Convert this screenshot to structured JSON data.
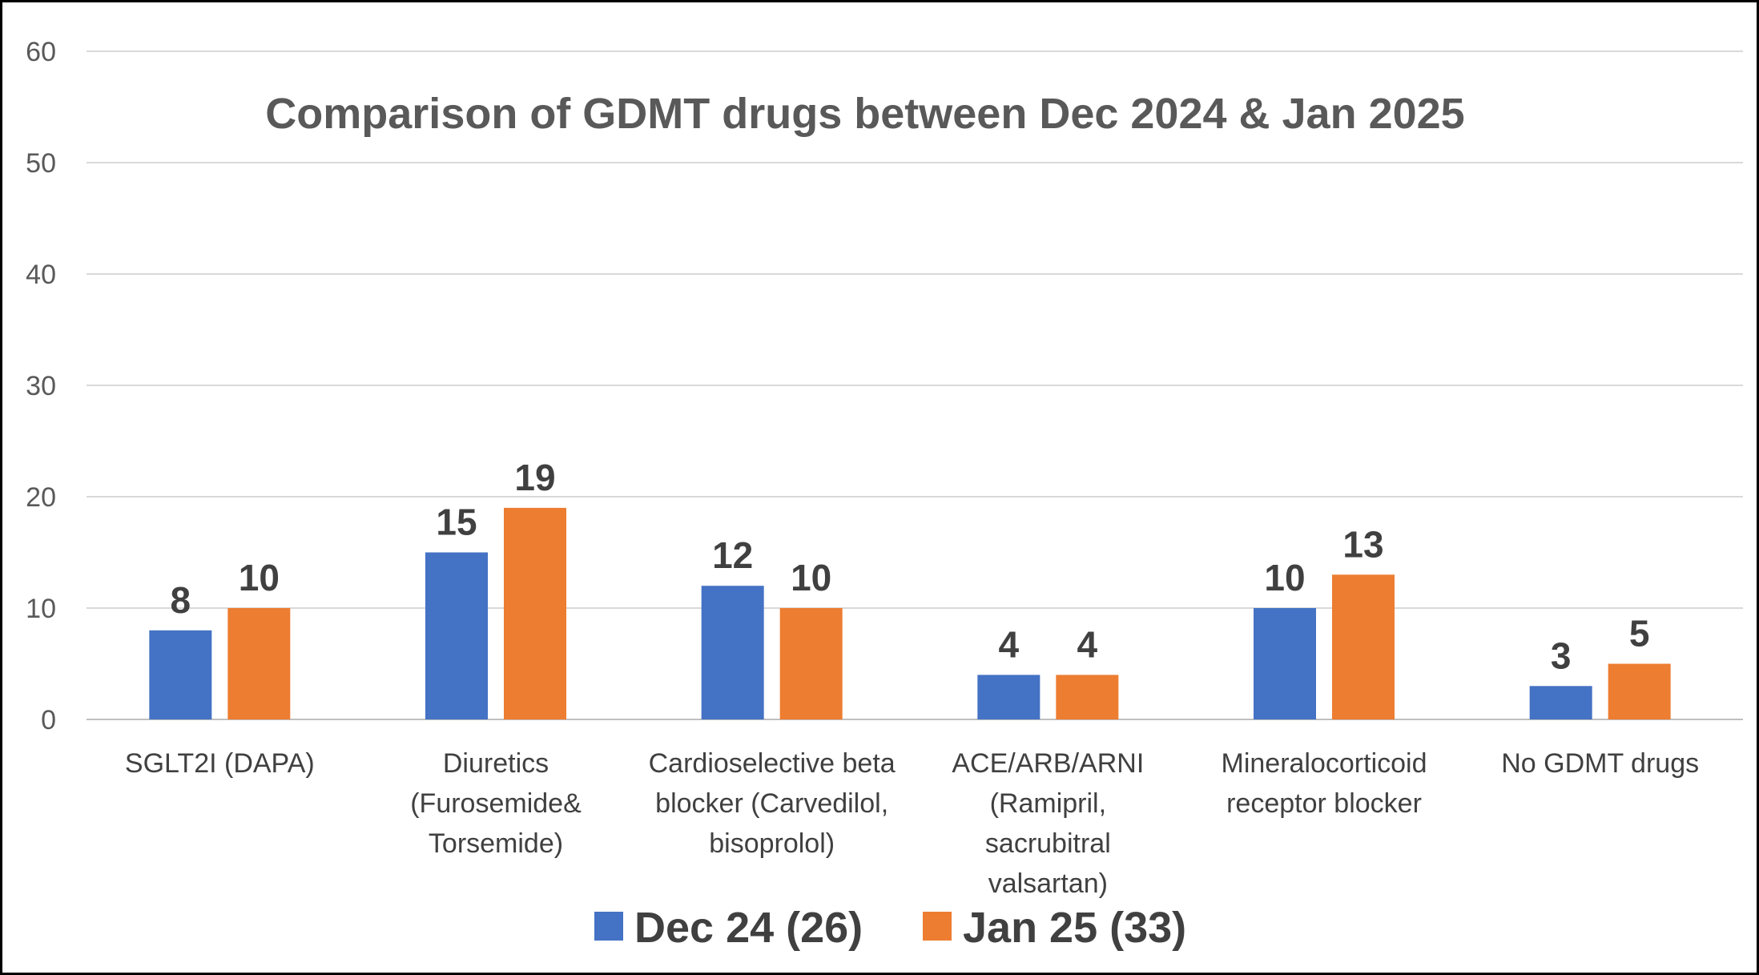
{
  "chart_data": {
    "type": "bar",
    "title": "Comparison of GDMT drugs between Dec 2024 & Jan 2025",
    "xlabel": "",
    "ylabel": "",
    "ylim": [
      0,
      60
    ],
    "yticks": [
      0,
      10,
      20,
      30,
      40,
      50,
      60
    ],
    "grid": true,
    "legend_position": "bottom",
    "categories": [
      [
        "SGLT2I (DAPA)"
      ],
      [
        "Diuretics",
        "(Furosemide&",
        "Torsemide)"
      ],
      [
        "Cardioselective beta",
        "blocker (Carvedilol,",
        "bisoprolol)"
      ],
      [
        "ACE/ARB/ARNI",
        "(Ramipril,",
        "sacrubitral",
        "valsartan)"
      ],
      [
        "Mineralocorticoid",
        "receptor blocker"
      ],
      [
        "No GDMT drugs"
      ]
    ],
    "series": [
      {
        "name": "Dec 24 (26)",
        "color": "#4472C4",
        "values": [
          8,
          15,
          12,
          4,
          10,
          3
        ]
      },
      {
        "name": "Jan 25 (33)",
        "color": "#ED7D31",
        "values": [
          10,
          19,
          10,
          4,
          13,
          5
        ]
      }
    ],
    "gridline_color": "#D9D9D9",
    "axis_line_color": "#BFBFBF"
  }
}
